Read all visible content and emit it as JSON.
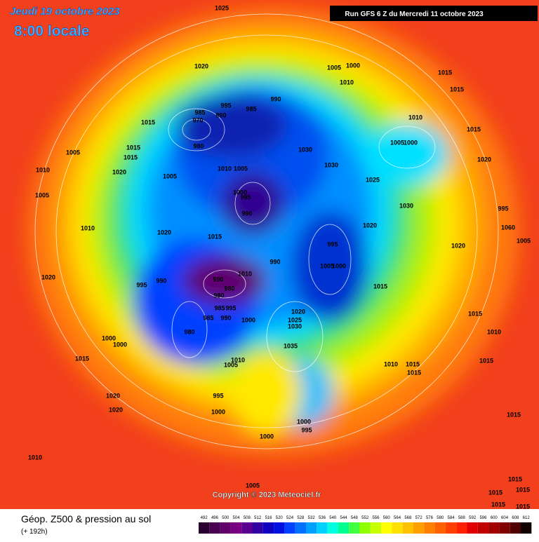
{
  "header": {
    "date": "Jeudi 19 octobre 2023",
    "time": "8:00 locale",
    "run": "Run GFS 6 Z du Mercredi 11 octobre 2023"
  },
  "copyright": "Copyright © 2023 Meteociel.fr",
  "legend": {
    "title": "Géop. Z500 & pression au sol",
    "lead": "(+ 192h)"
  },
  "pressure_labels": [
    1025,
    1020,
    1005,
    1000,
    1010,
    1015,
    1015,
    995,
    990,
    985,
    985,
    990,
    970,
    980,
    1015,
    1015,
    1015,
    1005,
    1010,
    1020,
    1005,
    1010,
    1005,
    1030,
    1030,
    1010,
    1015,
    1005,
    1000,
    1020,
    1025,
    1000,
    995,
    990,
    1005,
    1010,
    1020,
    1015,
    1030,
    995,
    1060,
    1005,
    1020,
    995,
    1020,
    990,
    1010,
    1005,
    1000,
    990,
    980,
    990,
    995,
    1015,
    980,
    985,
    995,
    1020,
    985,
    990,
    1000,
    1020,
    1025,
    1030,
    1015,
    1010,
    980,
    1000,
    1000,
    1035,
    1015,
    1005,
    1010,
    1010,
    1015,
    1015,
    1015,
    995,
    1020,
    1020,
    1000,
    1015,
    1000,
    995,
    1000,
    1010,
    1005,
    1015,
    1015,
    1015,
    1015,
    1015
  ],
  "colorbar": {
    "ticks": [
      492,
      496,
      500,
      504,
      508,
      512,
      516,
      520,
      524,
      528,
      532,
      536,
      540,
      544,
      548,
      552,
      556,
      560,
      564,
      568,
      572,
      576,
      580,
      584,
      588,
      592,
      596,
      600,
      604,
      608,
      612
    ],
    "colors": [
      "#2a0030",
      "#4a0050",
      "#600068",
      "#780080",
      "#5a0090",
      "#3000a0",
      "#1000c0",
      "#0010e0",
      "#0040ff",
      "#0070ff",
      "#00a0ff",
      "#00d0ff",
      "#00ffe0",
      "#00ff90",
      "#40ff40",
      "#90ff00",
      "#c8ff00",
      "#ffff00",
      "#ffe000",
      "#ffc000",
      "#ffa000",
      "#ff8000",
      "#ff6000",
      "#ff4000",
      "#ff2000",
      "#e00000",
      "#c00000",
      "#a00000",
      "#800000",
      "#500000",
      "#100000"
    ]
  }
}
